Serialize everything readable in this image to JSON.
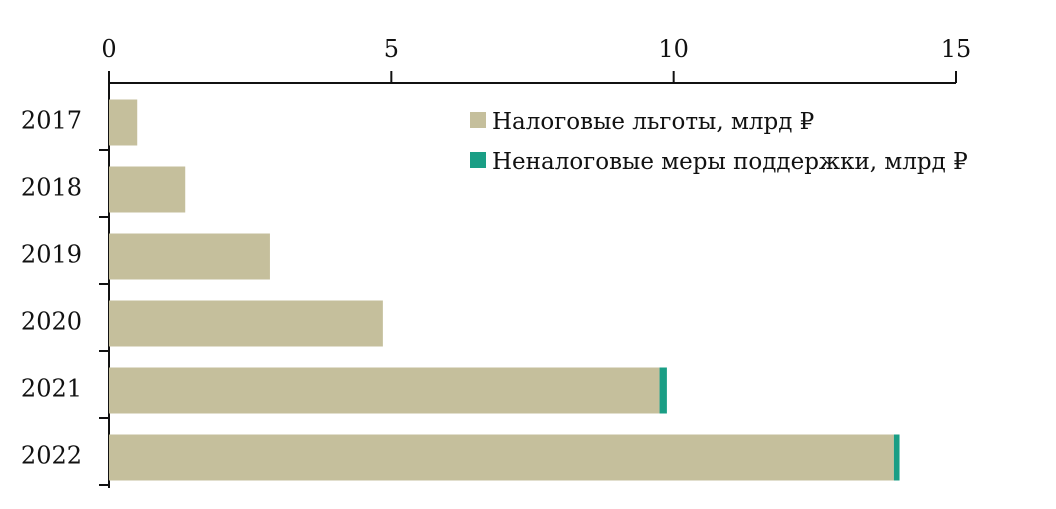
{
  "chart_data": {
    "type": "bar",
    "orientation": "horizontal",
    "stacked": true,
    "categories": [
      "2017",
      "2018",
      "2019",
      "2020",
      "2021",
      "2022"
    ],
    "series": [
      {
        "name": "Налоговые льготы, млрд ₽",
        "values": [
          0.5,
          1.35,
          2.85,
          4.85,
          9.75,
          13.9
        ],
        "color": "#c5bf9c"
      },
      {
        "name": "Неналоговые меры поддержки, млрд ₽",
        "values": [
          0,
          0,
          0,
          0,
          0.13,
          0.1
        ],
        "color": "#1a9e85"
      }
    ],
    "xlim": [
      0,
      15
    ],
    "xticks": [
      0,
      5,
      10,
      15
    ],
    "x_axis_position": "top",
    "grid": false,
    "legend_position": "top-right"
  }
}
